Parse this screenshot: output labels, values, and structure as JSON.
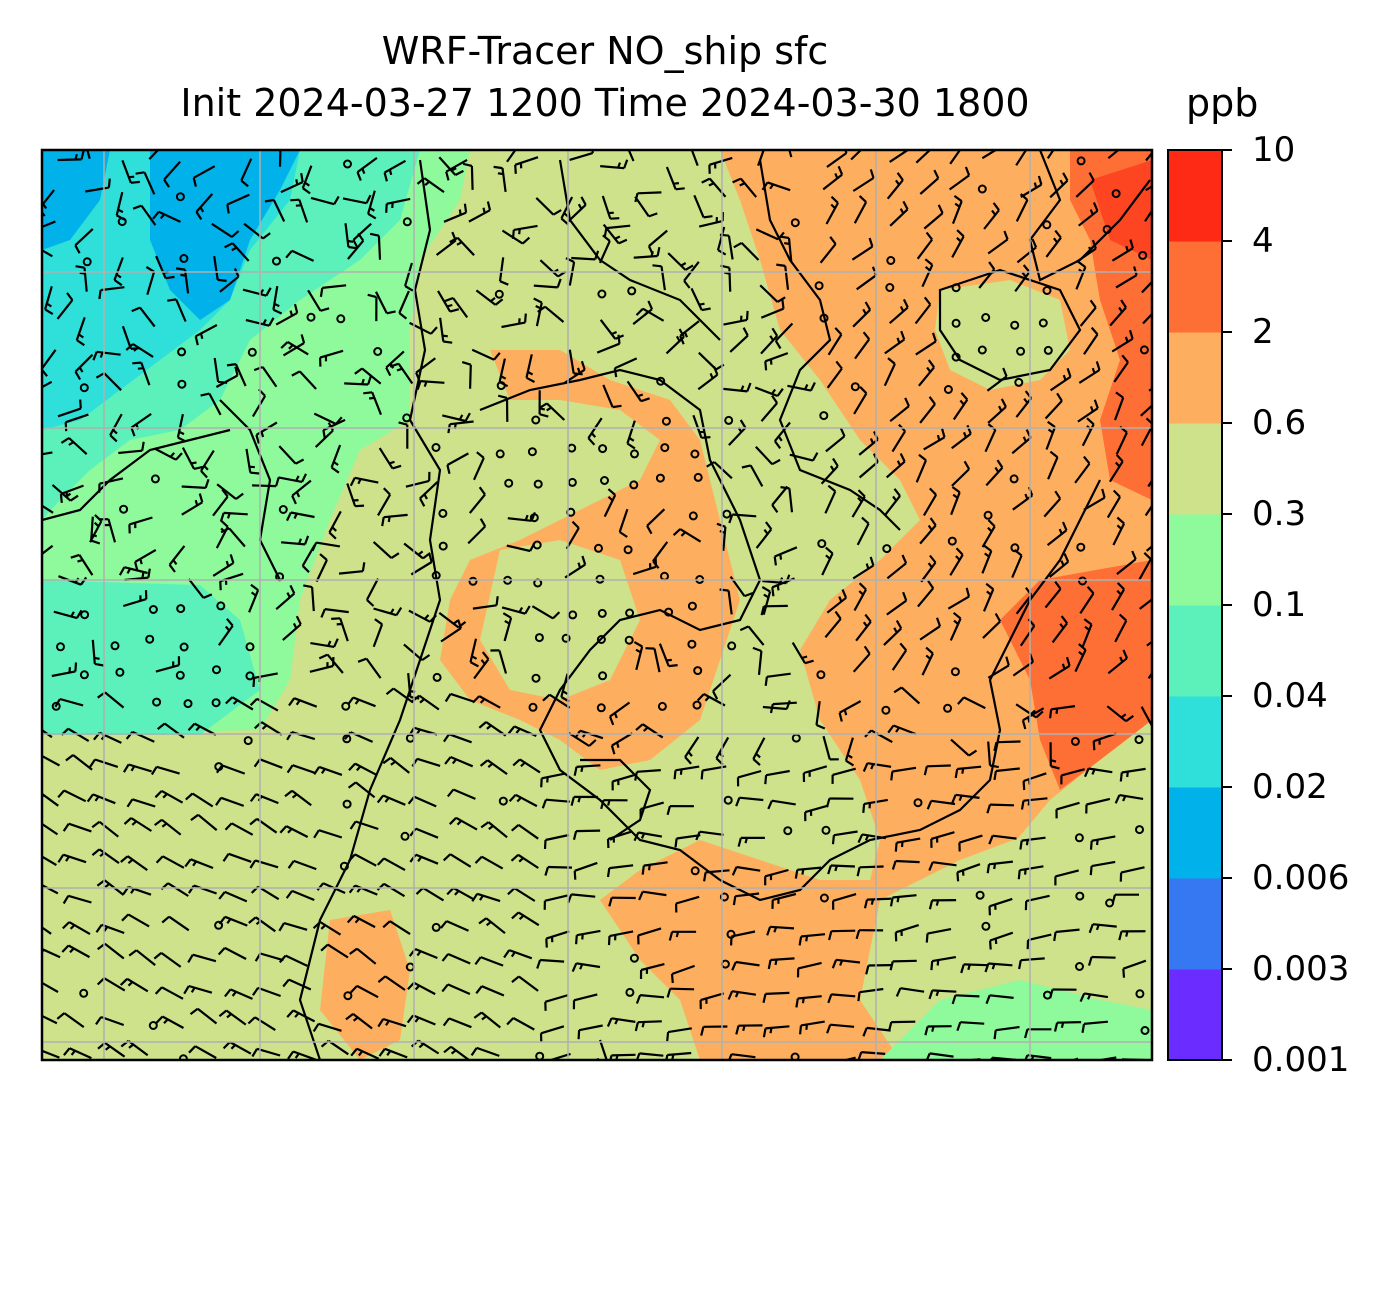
{
  "title": {
    "line1": "WRF-Tracer NO_ship sfc",
    "line2": "Init 2024-03-27 1200 Time 2024-03-30 1800",
    "units": "ppb"
  },
  "colorbar": {
    "levels": [
      "0.001",
      "0.003",
      "0.006",
      "0.02",
      "0.04",
      "0.1",
      "0.3",
      "0.6",
      "2",
      "4",
      "10"
    ],
    "colors": [
      "#6a2cff",
      "#3677f2",
      "#01b1ea",
      "#2ee0d9",
      "#5cf1bb",
      "#8efa9c",
      "#cde28a",
      "#fdaf5f",
      "#fe6f36",
      "#fe2a15"
    ]
  },
  "map": {
    "background_class_color": "#cde28a",
    "gridlines": true,
    "wind_barbs": true,
    "gridline_color": "#b0b0b0"
  }
}
